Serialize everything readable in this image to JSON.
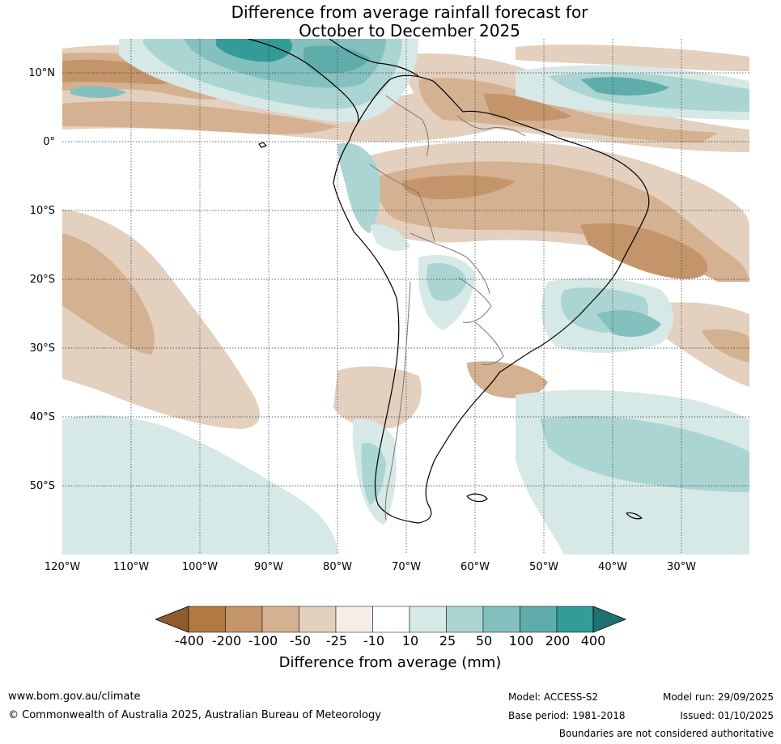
{
  "title": {
    "line1": "Difference from average rainfall forecast for",
    "line2": "October to December 2025"
  },
  "map": {
    "latitude_labels": [
      "10°N",
      "0°",
      "10°S",
      "20°S",
      "30°S",
      "40°S",
      "50°S"
    ],
    "longitude_labels": [
      "120°W",
      "110°W",
      "100°W",
      "90°W",
      "80°W",
      "70°W",
      "60°W",
      "50°W",
      "40°W",
      "30°W"
    ],
    "lat_range": [
      -60,
      15
    ],
    "lon_range": [
      -120,
      -20
    ]
  },
  "colorbar": {
    "title": "Difference from average (mm)",
    "ticks": [
      "-400",
      "-200",
      "-100",
      "-50",
      "-25",
      "-10",
      "10",
      "25",
      "50",
      "100",
      "200",
      "400"
    ],
    "colors": [
      "#8f5a2e",
      "#b07a42",
      "#c4956a",
      "#d4b191",
      "#e4d0bf",
      "#f5ede8",
      "#ffffff",
      "#d6e9e7",
      "#aad5d3",
      "#83c0be",
      "#5eadab",
      "#339b98",
      "#1f7170"
    ]
  },
  "footer": {
    "website": "www.bom.gov.au/climate",
    "copyright": "© Commonwealth of Australia 2025, Australian Bureau of Meteorology",
    "model": "Model: ACCESS-S2",
    "base_period": "Base period: 1981-2018",
    "model_run": "Model run: 29/09/2025",
    "issued": "Issued: 01/10/2025",
    "disclaimer": "Boundaries are not considered authoritative"
  }
}
